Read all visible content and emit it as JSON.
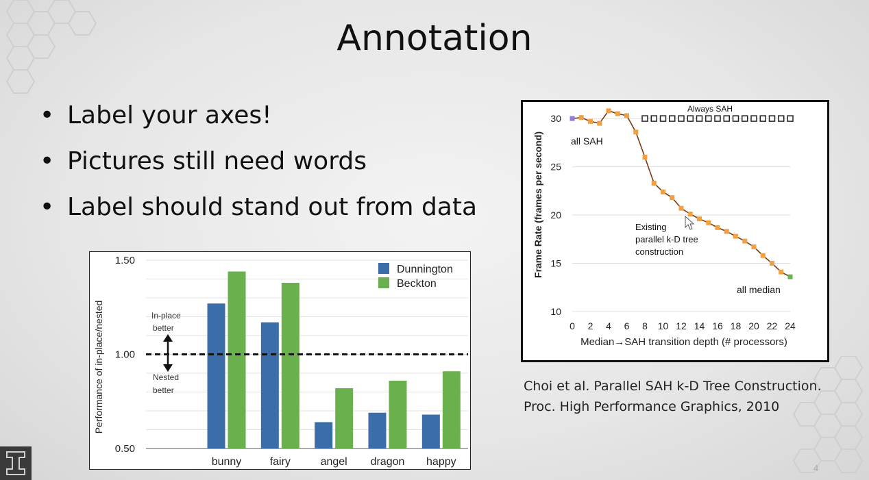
{
  "slide": {
    "title": "Annotation",
    "bullets": [
      "Label your axes!",
      "Pictures still need words",
      "Label should stand out from data"
    ],
    "bullet_glyph": "•",
    "citation_line1": "Choi et al.  Parallel SAH k-D Tree Construction.",
    "citation_line2": "Proc. High Performance Graphics, 2010",
    "slide_number": "4",
    "logo_icon": "block-i-logo-icon",
    "colors": {
      "background": "#e8e8e8",
      "text": "#111111"
    }
  },
  "chart_data": [
    {
      "type": "bar",
      "categories": [
        "",
        "bunny",
        "fairy",
        "angel",
        "dragon",
        "happy"
      ],
      "series": [
        {
          "name": "Dunnington",
          "color": "#3b6ea8",
          "values": [
            null,
            1.27,
            1.17,
            0.64,
            0.69,
            0.68
          ]
        },
        {
          "name": "Beckton",
          "color": "#6ab04c",
          "values": [
            null,
            1.44,
            1.38,
            0.82,
            0.86,
            0.91
          ]
        }
      ],
      "ylabel": "Performance of in-place/nested",
      "ylim": [
        0.5,
        1.5
      ],
      "yticks": [
        "0.50",
        "1.00",
        "1.50"
      ],
      "reference_line": 1.0,
      "annotations": {
        "above": [
          "In-place",
          "better"
        ],
        "below": [
          "Nested",
          "better"
        ]
      },
      "legend_position": "top-right",
      "grid": true
    },
    {
      "type": "line",
      "xlabel": "Median→SAH transition depth (# processors)",
      "ylabel": "Frame Rate (frames per second)",
      "xlim": [
        0,
        24
      ],
      "ylim": [
        10,
        31
      ],
      "xticks": [
        0,
        2,
        4,
        6,
        8,
        10,
        12,
        14,
        16,
        18,
        20,
        22,
        24
      ],
      "yticks": [
        10,
        15,
        20,
        25,
        30
      ],
      "grid": true,
      "series": [
        {
          "name": "Always SAH",
          "style": "hollow-square-markers",
          "color": "#222222",
          "x": [
            8,
            9,
            10,
            11,
            12,
            13,
            14,
            15,
            16,
            17,
            18,
            19,
            20,
            21,
            22,
            23,
            24
          ],
          "y": [
            30,
            30,
            30,
            30,
            30,
            30,
            30,
            30,
            30,
            30,
            30,
            30,
            30,
            30,
            30,
            30,
            30
          ]
        },
        {
          "name": "",
          "style": "line-with-square-markers",
          "color": "#f0a040",
          "line_color": "#7a3a10",
          "x": [
            0,
            1,
            2,
            3,
            4,
            5,
            6,
            7,
            8,
            9,
            10,
            11,
            12,
            13,
            14,
            15,
            16,
            17,
            18,
            19,
            20,
            21,
            22,
            23,
            24
          ],
          "y": [
            30.0,
            30.1,
            29.7,
            29.5,
            30.8,
            30.5,
            30.3,
            28.6,
            26.0,
            23.3,
            22.4,
            21.8,
            20.7,
            20.1,
            19.6,
            19.2,
            18.7,
            18.3,
            17.8,
            17.3,
            16.7,
            15.8,
            15.0,
            14.1,
            13.6
          ]
        }
      ],
      "endpoint_colors": {
        "first": "#8c7ed8",
        "last": "#6ab04c"
      },
      "annotations": {
        "series_label": "Always SAH",
        "start": "all SAH",
        "middle": [
          "Existing",
          "parallel k-D tree",
          "construction"
        ],
        "end": "all median"
      }
    }
  ]
}
